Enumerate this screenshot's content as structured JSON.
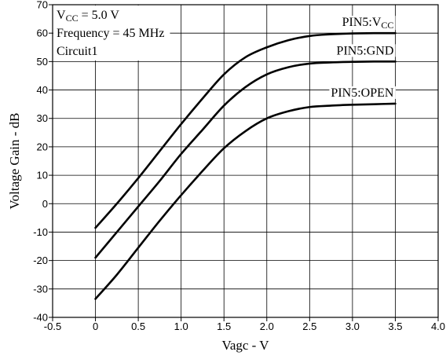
{
  "chart_data": {
    "type": "line",
    "title": "",
    "xlabel": "Vagc - V",
    "ylabel": "Voltage Gain - dB",
    "xlim": [
      -0.5,
      4.0
    ],
    "ylim": [
      -40,
      70
    ],
    "xticks": [
      "-0.5",
      "0",
      "0.5",
      "1.0",
      "1.5",
      "2.0",
      "2.5",
      "3.0",
      "3.5",
      "4.0"
    ],
    "yticks": [
      "70",
      "60",
      "50",
      "40",
      "30",
      "20",
      "10",
      "0",
      "-10",
      "-20",
      "-30",
      "-40"
    ],
    "grid": true,
    "annotations": [
      {
        "main": "V",
        "sub": "CC",
        "rest": " = 5.0 V"
      },
      {
        "main": "Frequency = 45 MHz",
        "sub": "",
        "rest": ""
      },
      {
        "main": "Circuit1",
        "sub": "",
        "rest": ""
      }
    ],
    "series": [
      {
        "name": "PIN5:VCC",
        "label_main": "PIN5:V",
        "label_sub": "CC",
        "x": [
          0,
          0.25,
          0.5,
          0.75,
          1.0,
          1.25,
          1.5,
          1.75,
          2.0,
          2.25,
          2.5,
          2.75,
          3.0,
          3.25,
          3.5
        ],
        "y": [
          -8.5,
          0,
          9,
          18.5,
          28,
          37,
          45.5,
          51.5,
          55,
          57.5,
          59,
          59.6,
          59.9,
          60,
          60
        ]
      },
      {
        "name": "PIN5:GND",
        "label_main": "PIN5:GND",
        "label_sub": "",
        "x": [
          0,
          0.25,
          0.5,
          0.75,
          1.0,
          1.25,
          1.5,
          1.75,
          2.0,
          2.25,
          2.5,
          2.75,
          3.0,
          3.25,
          3.5
        ],
        "y": [
          -19,
          -10,
          -1,
          8,
          17.5,
          26,
          34.5,
          41,
          45.5,
          48,
          49.3,
          49.7,
          49.9,
          50,
          50
        ]
      },
      {
        "name": "PIN5:OPEN",
        "label_main": "PIN5:OPEN",
        "label_sub": "",
        "x": [
          0,
          0.25,
          0.5,
          0.75,
          1.0,
          1.25,
          1.5,
          1.75,
          2.0,
          2.25,
          2.5,
          2.75,
          3.0,
          3.25,
          3.5
        ],
        "y": [
          -33.5,
          -25,
          -15.5,
          -6,
          3,
          11.5,
          19.5,
          25.5,
          30,
          32.5,
          34,
          34.5,
          34.8,
          35,
          35.2
        ]
      }
    ]
  }
}
